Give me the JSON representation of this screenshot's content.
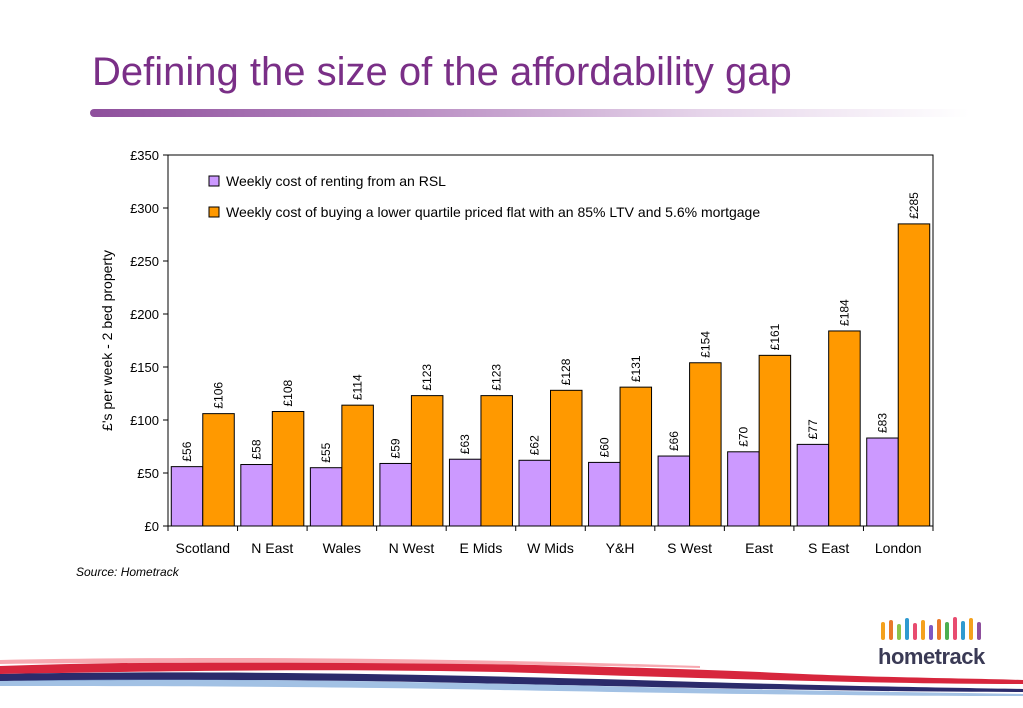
{
  "page": {
    "title": "Defining the size of the affordability gap",
    "source": "Source: Hometrack",
    "logo_text": "hometrack",
    "title_color": "#7a2f87"
  },
  "chart_data": {
    "type": "bar",
    "title": "",
    "xlabel": "",
    "ylabel": "£'s per week -  2 bed property",
    "ylim": [
      0,
      350
    ],
    "yticks": [
      0,
      50,
      100,
      150,
      200,
      250,
      300,
      350
    ],
    "ytick_labels": [
      "£0",
      "£50",
      "£100",
      "£150",
      "£200",
      "£250",
      "£300",
      "£350"
    ],
    "grid": false,
    "legend_position": "top-left inside plot",
    "categories": [
      "Scotland",
      "N East",
      "Wales",
      "N West",
      "E Mids",
      "W Mids",
      "Y&H",
      "S West",
      "East",
      "S East",
      "London"
    ],
    "series": [
      {
        "name": "Weekly cost of renting from an RSL",
        "color": "#cc99ff",
        "values": [
          56,
          58,
          55,
          59,
          63,
          62,
          60,
          66,
          70,
          77,
          83
        ],
        "labels": [
          "£56",
          "£58",
          "£55",
          "£59",
          "£63",
          "£62",
          "£60",
          "£66",
          "£70",
          "£77",
          "£83"
        ]
      },
      {
        "name": "Weekly cost of buying a lower quartile priced flat with an 85% LTV and 5.6% mortgage",
        "color": "#ff9900",
        "values": [
          106,
          108,
          114,
          123,
          123,
          128,
          131,
          154,
          161,
          184,
          285
        ],
        "labels": [
          "£106",
          "£108",
          "£114",
          "£123",
          "£123",
          "£128",
          "£131",
          "£154",
          "£161",
          "£184",
          "£285"
        ]
      }
    ]
  }
}
